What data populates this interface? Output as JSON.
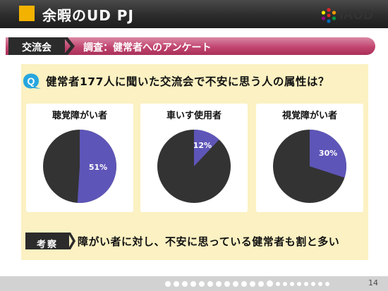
{
  "header": {
    "title": "余暇のUD PJ",
    "logo_text": "IAUD",
    "accent": "#f3b200"
  },
  "subheader": {
    "tag": "交流会",
    "subtitle": "調査：健常者へのアンケート",
    "color": "#c24570"
  },
  "question": {
    "icon": "q-icon",
    "text": "健常者177人に聞いた交流会で不安に思う人の属性は？"
  },
  "chart_data": {
    "type": "pie",
    "charts": [
      {
        "label": "聴覚障がい者",
        "value_percent": 51,
        "value_label": "51%"
      },
      {
        "label": "車いす使用者",
        "value_percent": 12,
        "value_label": "12%"
      },
      {
        "label": "視覚障がい者",
        "value_percent": 30,
        "value_label": "30%"
      }
    ],
    "colors": {
      "highlight": "#5e55b8",
      "rest": "#333333"
    }
  },
  "conclusion": {
    "tag": "考察",
    "text": "障がい者に対し、不安に思っている健常者も割と多い"
  },
  "footer": {
    "page_number": "14"
  }
}
